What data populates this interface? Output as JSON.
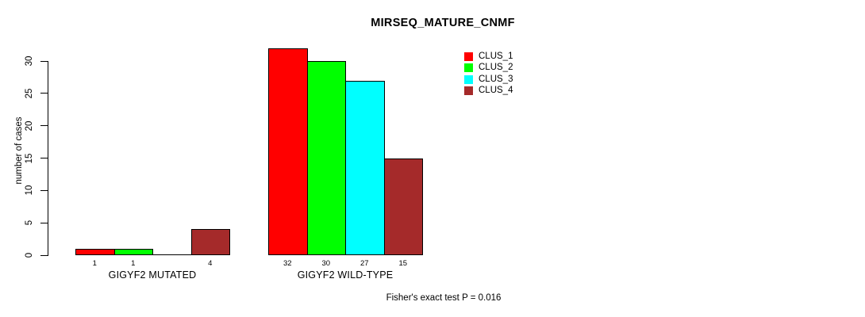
{
  "figure": {
    "title": "MIRSEQ_MATURE_CNMF",
    "annotation": "Fisher's exact test P = 0.016"
  },
  "chart_data": {
    "type": "bar",
    "title": "MIRSEQ_MATURE_CNMF",
    "xlabel": "",
    "ylabel": "number of cases",
    "categories": [
      "GIGYF2 MUTATED",
      "GIGYF2 WILD-TYPE"
    ],
    "series": [
      {
        "name": "CLUS_1",
        "color": "#FF0000",
        "values": [
          1,
          32
        ]
      },
      {
        "name": "CLUS_2",
        "color": "#00FF00",
        "values": [
          1,
          30
        ]
      },
      {
        "name": "CLUS_3",
        "color": "#00FFFF",
        "values": [
          0,
          27
        ]
      },
      {
        "name": "CLUS_4",
        "color": "#A52A2A",
        "values": [
          4,
          15
        ]
      }
    ],
    "yticks": [
      0,
      5,
      10,
      15,
      20,
      25,
      30
    ],
    "ylim": [
      0,
      32
    ],
    "grid": false,
    "legend_position": "top-right",
    "legend_entries": [
      "CLUS_1",
      "CLUS_2",
      "CLUS_3",
      "CLUS_4"
    ],
    "bar_value_labels_shown": true,
    "zero_value_labels_hidden": true,
    "annotation": "Fisher's exact test P = 0.016"
  }
}
